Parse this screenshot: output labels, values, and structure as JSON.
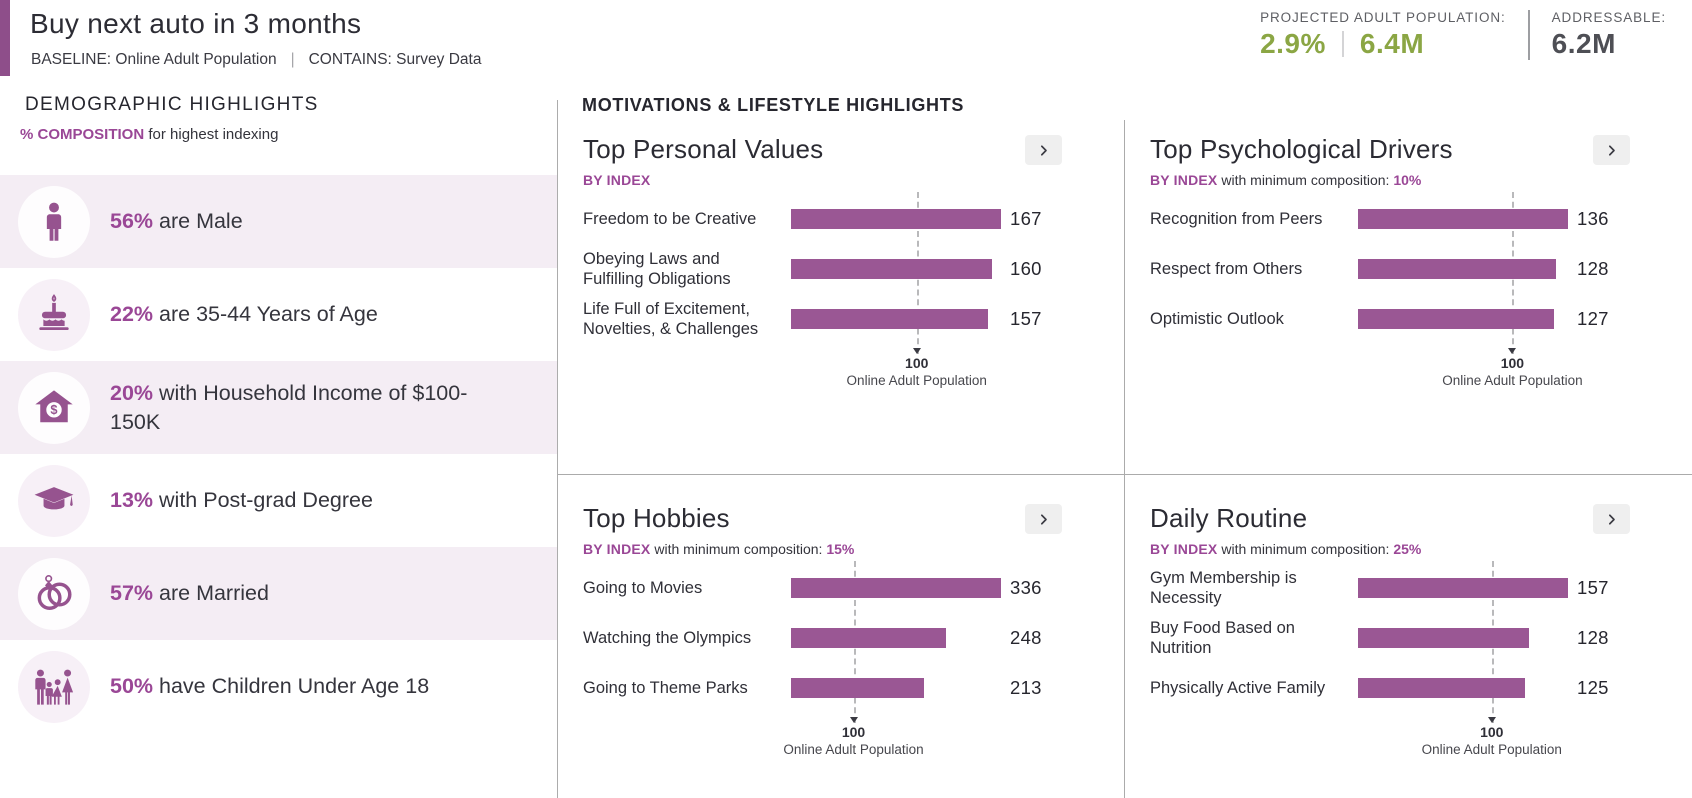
{
  "header": {
    "title": "Buy next auto in 3 months",
    "baseline": "BASELINE: Online Adult Population",
    "separator": "|",
    "contains": "CONTAINS: Survey Data",
    "projected_label": "PROJECTED ADULT POPULATION:",
    "projected_percent": "2.9%",
    "projected_count": "6.4M",
    "addressable_label": "ADDRESSABLE:",
    "addressable_value": "6.2M"
  },
  "colors": {
    "purple_accent": "#8e4e8a",
    "purple_bar": "#9a5794",
    "purple_text": "#9a4796",
    "green_stat": "#8ba644",
    "shaded_row": "#f4edf4",
    "divider_gray": "#ababab"
  },
  "demographics": {
    "title": "DEMOGRAPHIC HIGHLIGHTS",
    "subtitle_strong": "% COMPOSITION",
    "subtitle_rest": "for highest indexing",
    "rows": [
      {
        "icon": "male-icon",
        "value": "56%",
        "text": "are Male",
        "shaded": true
      },
      {
        "icon": "birthday-cake-icon",
        "value": "22%",
        "text": "are 35-44 Years of Age",
        "shaded": false
      },
      {
        "icon": "house-dollar-icon",
        "value": "20%",
        "text": "with Household Income of $100-150K",
        "shaded": true
      },
      {
        "icon": "graduation-cap-icon",
        "value": "13%",
        "text": "with Post-grad Degree",
        "shaded": false
      },
      {
        "icon": "wedding-rings-icon",
        "value": "57%",
        "text": "are Married",
        "shaded": true
      },
      {
        "icon": "family-icon",
        "value": "50%",
        "text": "have Children Under Age 18",
        "shaded": false
      }
    ]
  },
  "motivations": {
    "title": "MOTIVATIONS & LIFESTYLE HIGHLIGHTS"
  },
  "chart_data": [
    {
      "type": "bar",
      "title": "Top Personal Values",
      "by_label": "BY INDEX",
      "min_label": "",
      "min_value": "",
      "categories": [
        "Freedom to be Creative",
        "Obeying Laws and Fulfilling Obligations",
        "Life Full of Excitement, Novelties, & Challenges"
      ],
      "values": [
        167,
        160,
        157
      ],
      "xlim": [
        0,
        167
      ],
      "reference_value": 100,
      "reference_value_label": "100",
      "reference_label": "Online Adult Population"
    },
    {
      "type": "bar",
      "title": "Top Psychological Drivers",
      "by_label": "BY INDEX",
      "min_label": "with minimum composition:",
      "min_value": "10%",
      "categories": [
        "Recognition from Peers",
        "Respect from Others",
        "Optimistic Outlook"
      ],
      "values": [
        136,
        128,
        127
      ],
      "xlim": [
        0,
        136
      ],
      "reference_value": 100,
      "reference_value_label": "100",
      "reference_label": "Online Adult Population"
    },
    {
      "type": "bar",
      "title": "Top Hobbies",
      "by_label": "BY INDEX",
      "min_label": "with minimum composition:",
      "min_value": "15%",
      "categories": [
        "Going to Movies",
        "Watching the Olympics",
        "Going to Theme Parks"
      ],
      "values": [
        336,
        248,
        213
      ],
      "xlim": [
        0,
        336
      ],
      "reference_value": 100,
      "reference_value_label": "100",
      "reference_label": "Online Adult Population"
    },
    {
      "type": "bar",
      "title": "Daily Routine",
      "by_label": "BY INDEX",
      "min_label": "with minimum composition:",
      "min_value": "25%",
      "categories": [
        "Gym Membership is Necessity",
        "Buy Food Based on Nutrition",
        "Physically Active Family"
      ],
      "values": [
        157,
        128,
        125
      ],
      "xlim": [
        0,
        157
      ],
      "reference_value": 100,
      "reference_value_label": "100",
      "reference_label": "Online Adult Population"
    }
  ]
}
